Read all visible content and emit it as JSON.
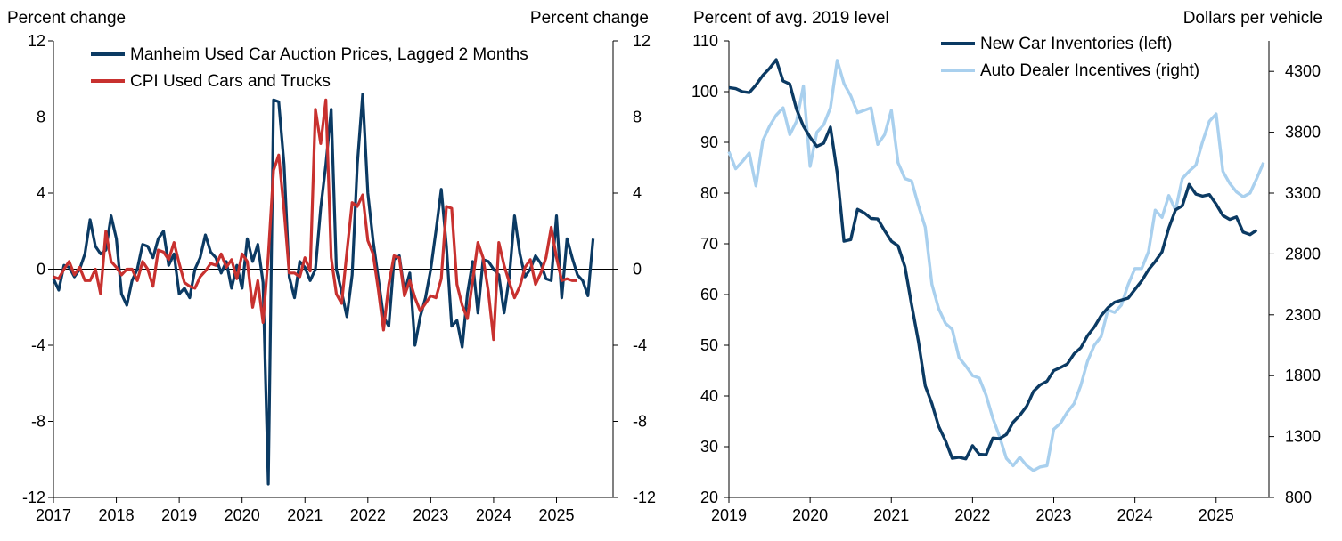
{
  "colors": {
    "navy": "#0b3a63",
    "red": "#c8312f",
    "lightblue": "#a9d0ee",
    "axis": "#000000"
  },
  "chart_data": [
    {
      "type": "line",
      "title": "",
      "left_axis_label": "Percent change",
      "right_axis_label": "Percent change",
      "ylim": [
        -12,
        12
      ],
      "yticks": [
        12,
        8,
        4,
        0,
        -4,
        -8,
        -12
      ],
      "ytick_labels": [
        "12",
        "8",
        "4",
        "0",
        "-4",
        "-8",
        "-12"
      ],
      "xlim": [
        2017,
        2025.9
      ],
      "xticks": [
        2017,
        2018,
        2019,
        2020,
        2021,
        2022,
        2023,
        2024,
        2025
      ],
      "xtick_labels": [
        "2017",
        "2018",
        "2019",
        "2020",
        "2021",
        "2022",
        "2023",
        "2024",
        "2025"
      ],
      "legend_position": "top-left",
      "grid": false,
      "series": [
        {
          "name": "Manheim Used Car Auction Prices, Lagged 2 Months",
          "color": "navy",
          "x": [
            2017.0,
            2017.083,
            2017.167,
            2017.25,
            2017.333,
            2017.417,
            2017.5,
            2017.583,
            2017.667,
            2017.75,
            2017.833,
            2017.917,
            2018.0,
            2018.083,
            2018.167,
            2018.25,
            2018.333,
            2018.417,
            2018.5,
            2018.583,
            2018.667,
            2018.75,
            2018.833,
            2018.917,
            2019.0,
            2019.083,
            2019.167,
            2019.25,
            2019.333,
            2019.417,
            2019.5,
            2019.583,
            2019.667,
            2019.75,
            2019.833,
            2019.917,
            2020.0,
            2020.083,
            2020.167,
            2020.25,
            2020.333,
            2020.417,
            2020.5,
            2020.583,
            2020.667,
            2020.75,
            2020.833,
            2020.917,
            2021.0,
            2021.083,
            2021.167,
            2021.25,
            2021.333,
            2021.417,
            2021.5,
            2021.583,
            2021.667,
            2021.75,
            2021.833,
            2021.917,
            2022.0,
            2022.083,
            2022.167,
            2022.25,
            2022.333,
            2022.417,
            2022.5,
            2022.583,
            2022.667,
            2022.75,
            2022.833,
            2022.917,
            2023.0,
            2023.083,
            2023.167,
            2023.25,
            2023.333,
            2023.417,
            2023.5,
            2023.583,
            2023.667,
            2023.75,
            2023.833,
            2023.917,
            2024.0,
            2024.083,
            2024.167,
            2024.25,
            2024.333,
            2024.417,
            2024.5,
            2024.583,
            2024.667,
            2024.75,
            2024.833,
            2024.917,
            2025.0,
            2025.083,
            2025.167,
            2025.25,
            2025.333,
            2025.417,
            2025.5,
            2025.583
          ],
          "values": [
            -0.5,
            -1.1,
            0.2,
            0.1,
            -0.4,
            0.0,
            0.8,
            2.6,
            1.2,
            0.8,
            1.0,
            2.8,
            1.6,
            -1.3,
            -1.9,
            -0.6,
            0.0,
            1.3,
            1.2,
            0.6,
            1.6,
            2.0,
            0.2,
            0.8,
            -1.3,
            -1.0,
            -1.5,
            0.0,
            0.6,
            1.8,
            0.9,
            0.6,
            -0.2,
            0.4,
            -1.0,
            0.2,
            -1.0,
            1.6,
            0.4,
            1.3,
            -0.7,
            -11.3,
            8.9,
            8.8,
            5.5,
            -0.4,
            -1.5,
            0.4,
            0.1,
            -0.6,
            0.0,
            3.2,
            5.5,
            8.4,
            0.0,
            -1.2,
            -2.5,
            -0.3,
            5.5,
            9.2,
            4.0,
            1.5,
            -0.5,
            -2.5,
            -3.0,
            0.5,
            0.7,
            -1.2,
            -0.2,
            -4.0,
            -2.5,
            -1.5,
            0.0,
            2.0,
            4.2,
            1.2,
            -3.0,
            -2.7,
            -4.1,
            -1.3,
            0.4,
            -2.3,
            0.5,
            0.4,
            0.0,
            -0.3,
            -2.3,
            -0.4,
            2.8,
            0.8,
            -0.4,
            0.0,
            0.7,
            0.3,
            -0.5,
            -0.6,
            2.8,
            -1.5,
            1.6,
            0.6,
            -0.3,
            -0.6,
            -1.4,
            1.6
          ]
        },
        {
          "name": "CPI Used Cars and Trucks",
          "color": "red",
          "x": [
            2017.0,
            2017.083,
            2017.167,
            2017.25,
            2017.333,
            2017.417,
            2017.5,
            2017.583,
            2017.667,
            2017.75,
            2017.833,
            2017.917,
            2018.0,
            2018.083,
            2018.167,
            2018.25,
            2018.333,
            2018.417,
            2018.5,
            2018.583,
            2018.667,
            2018.75,
            2018.833,
            2018.917,
            2019.0,
            2019.083,
            2019.167,
            2019.25,
            2019.333,
            2019.417,
            2019.5,
            2019.583,
            2019.667,
            2019.75,
            2019.833,
            2019.917,
            2020.0,
            2020.083,
            2020.167,
            2020.25,
            2020.333,
            2020.417,
            2020.5,
            2020.583,
            2020.667,
            2020.75,
            2020.833,
            2020.917,
            2021.0,
            2021.083,
            2021.167,
            2021.25,
            2021.333,
            2021.417,
            2021.5,
            2021.583,
            2021.667,
            2021.75,
            2021.833,
            2021.917,
            2022.0,
            2022.083,
            2022.167,
            2022.25,
            2022.333,
            2022.417,
            2022.5,
            2022.583,
            2022.667,
            2022.75,
            2022.833,
            2022.917,
            2023.0,
            2023.083,
            2023.167,
            2023.25,
            2023.333,
            2023.417,
            2023.5,
            2023.583,
            2023.667,
            2023.75,
            2023.833,
            2023.917,
            2024.0,
            2024.083,
            2024.167,
            2024.25,
            2024.333,
            2024.417,
            2024.5,
            2024.583,
            2024.667,
            2024.75,
            2024.833,
            2024.917,
            2025.0,
            2025.083,
            2025.167,
            2025.25,
            2025.333
          ],
          "values": [
            -0.4,
            -0.5,
            0.0,
            0.4,
            -0.3,
            0.1,
            -0.6,
            -0.6,
            0.0,
            -1.3,
            2.0,
            0.4,
            0.1,
            -0.3,
            0.0,
            0.0,
            -0.6,
            0.4,
            0.0,
            -0.9,
            1.0,
            0.9,
            0.5,
            1.4,
            0.3,
            -0.7,
            -0.9,
            -1.0,
            -0.4,
            -0.1,
            0.3,
            0.2,
            0.8,
            0.1,
            0.5,
            -0.5,
            0.8,
            0.4,
            -2.0,
            -0.6,
            -2.8,
            0.7,
            5.2,
            6.0,
            3.1,
            -0.2,
            -0.2,
            -0.4,
            0.6,
            -0.1,
            8.4,
            6.6,
            8.9,
            0.6,
            -1.3,
            -1.8,
            0.9,
            3.5,
            3.3,
            3.9,
            1.5,
            0.8,
            -1.1,
            -3.2,
            -0.8,
            0.7,
            0.6,
            -1.4,
            -0.6,
            -1.5,
            -2.2,
            -1.8,
            -1.4,
            -1.5,
            -0.5,
            3.3,
            3.2,
            -0.8,
            -1.9,
            -2.6,
            -0.6,
            1.4,
            0.6,
            -1.2,
            -3.7,
            1.4,
            0.2,
            -0.7,
            -1.5,
            -0.9,
            0.1,
            0.5,
            -0.8,
            -0.2,
            0.6,
            2.2,
            0.6,
            -0.6,
            -0.5,
            -0.6,
            -0.6
          ]
        }
      ]
    },
    {
      "type": "line",
      "title": "",
      "left_axis_label": "Percent of avg. 2019 level",
      "right_axis_label": "Dollars per vehicle",
      "ylim_left": [
        20,
        110
      ],
      "yticks_left": [
        110,
        100,
        90,
        80,
        70,
        60,
        50,
        40,
        30,
        20
      ],
      "ylim_right": [
        800,
        4550
      ],
      "yticks_right": [
        4300,
        3800,
        3300,
        2800,
        2300,
        1800,
        1300,
        800
      ],
      "xlim": [
        2019,
        2025.65
      ],
      "xticks": [
        2019,
        2020,
        2021,
        2022,
        2023,
        2024,
        2025
      ],
      "xtick_labels": [
        "2019",
        "2020",
        "2021",
        "2022",
        "2023",
        "2024",
        "2025"
      ],
      "legend_position": "top-right",
      "grid": false,
      "series": [
        {
          "name": "New Car Inventories (left)",
          "color": "navy",
          "axis": "left",
          "x": [
            2019.0,
            2019.083,
            2019.167,
            2019.25,
            2019.333,
            2019.417,
            2019.5,
            2019.583,
            2019.667,
            2019.75,
            2019.833,
            2019.917,
            2020.0,
            2020.083,
            2020.167,
            2020.25,
            2020.333,
            2020.417,
            2020.5,
            2020.583,
            2020.667,
            2020.75,
            2020.833,
            2020.917,
            2021.0,
            2021.083,
            2021.167,
            2021.25,
            2021.333,
            2021.417,
            2021.5,
            2021.583,
            2021.667,
            2021.75,
            2021.833,
            2021.917,
            2022.0,
            2022.083,
            2022.167,
            2022.25,
            2022.333,
            2022.417,
            2022.5,
            2022.583,
            2022.667,
            2022.75,
            2022.833,
            2022.917,
            2023.0,
            2023.083,
            2023.167,
            2023.25,
            2023.333,
            2023.417,
            2023.5,
            2023.583,
            2023.667,
            2023.75,
            2023.833,
            2023.917,
            2024.0,
            2024.083,
            2024.167,
            2024.25,
            2024.333,
            2024.417,
            2024.5,
            2024.583,
            2024.667,
            2024.75,
            2024.833,
            2024.917,
            2025.0,
            2025.083,
            2025.167,
            2025.25,
            2025.333,
            2025.417,
            2025.5
          ],
          "values": [
            100.8,
            100.6,
            100.0,
            99.8,
            101.3,
            103.2,
            104.6,
            106.3,
            102.1,
            101.5,
            96.5,
            93.2,
            91.0,
            89.2,
            89.8,
            93.0,
            84.0,
            70.5,
            70.8,
            76.8,
            76.1,
            75.0,
            74.9,
            72.6,
            70.5,
            69.6,
            65.5,
            58.0,
            50.8,
            42.0,
            38.5,
            34.0,
            31.2,
            27.7,
            27.9,
            27.6,
            30.2,
            28.5,
            28.4,
            31.7,
            31.6,
            32.4,
            34.8,
            36.2,
            38.0,
            40.9,
            42.2,
            42.9,
            45.0,
            45.6,
            46.3,
            48.3,
            49.5,
            51.9,
            53.6,
            55.8,
            57.4,
            58.5,
            58.9,
            59.3,
            61.0,
            62.7,
            64.9,
            66.5,
            68.4,
            73.1,
            76.7,
            77.5,
            81.7,
            79.8,
            79.4,
            79.7,
            77.8,
            75.6,
            74.8,
            75.3,
            72.3,
            71.8,
            72.7
          ]
        },
        {
          "name": "Auto Dealer Incentives (right)",
          "color": "lightblue",
          "axis": "right",
          "x": [
            2019.0,
            2019.083,
            2019.167,
            2019.25,
            2019.333,
            2019.417,
            2019.5,
            2019.583,
            2019.667,
            2019.75,
            2019.833,
            2019.917,
            2020.0,
            2020.083,
            2020.167,
            2020.25,
            2020.333,
            2020.417,
            2020.5,
            2020.583,
            2020.667,
            2020.75,
            2020.833,
            2020.917,
            2021.0,
            2021.083,
            2021.167,
            2021.25,
            2021.333,
            2021.417,
            2021.5,
            2021.583,
            2021.667,
            2021.75,
            2021.833,
            2021.917,
            2022.0,
            2022.083,
            2022.167,
            2022.25,
            2022.333,
            2022.417,
            2022.5,
            2022.583,
            2022.667,
            2022.75,
            2022.833,
            2022.917,
            2023.0,
            2023.083,
            2023.167,
            2023.25,
            2023.333,
            2023.417,
            2023.5,
            2023.583,
            2023.667,
            2023.75,
            2023.833,
            2023.917,
            2024.0,
            2024.083,
            2024.167,
            2024.25,
            2024.333,
            2024.417,
            2024.5,
            2024.583,
            2024.667,
            2024.75,
            2024.833,
            2024.917,
            2025.0,
            2025.083,
            2025.167,
            2025.25,
            2025.333,
            2025.417,
            2025.5,
            2025.583
          ],
          "values": [
            3640,
            3500,
            3560,
            3630,
            3360,
            3730,
            3850,
            3940,
            4000,
            3780,
            3890,
            4180,
            3520,
            3800,
            3860,
            4000,
            4390,
            4200,
            4100,
            3960,
            3980,
            4000,
            3700,
            3780,
            3980,
            3550,
            3420,
            3400,
            3200,
            3020,
            2550,
            2350,
            2230,
            2180,
            1950,
            1880,
            1800,
            1780,
            1640,
            1450,
            1300,
            1120,
            1060,
            1130,
            1060,
            1020,
            1050,
            1060,
            1360,
            1410,
            1500,
            1570,
            1720,
            1920,
            2050,
            2120,
            2340,
            2320,
            2380,
            2550,
            2680,
            2680,
            2820,
            3160,
            3100,
            3280,
            3160,
            3420,
            3480,
            3530,
            3720,
            3890,
            3950,
            3480,
            3380,
            3310,
            3270,
            3300,
            3420,
            3550
          ]
        }
      ]
    }
  ]
}
